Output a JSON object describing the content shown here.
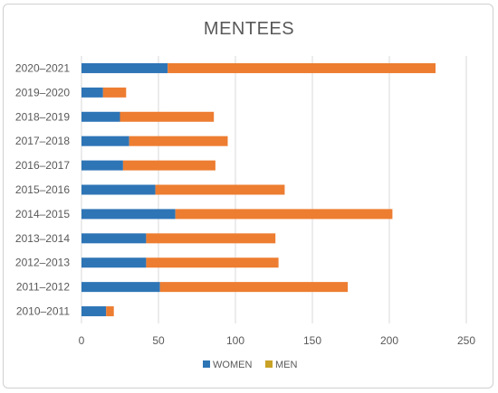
{
  "chart_data": {
    "type": "bar",
    "orientation": "horizontal",
    "stacked": true,
    "title": "MENTEES",
    "categories": [
      "2020–2021",
      "2019–2020",
      "2018–2019",
      "2017–2018",
      "2016–2017",
      "2015–2016",
      "2014–2015",
      "2013–2014",
      "2012–2013",
      "2011–2012",
      "2010–2011"
    ],
    "series": [
      {
        "name": "WOMEN",
        "color": "#2e75b6",
        "values": [
          56,
          14,
          25,
          31,
          27,
          48,
          61,
          42,
          42,
          51,
          16
        ]
      },
      {
        "name": "MEN",
        "color_swatch": "#c9a227",
        "color_bars": "#ed7d31",
        "values": [
          174,
          15,
          61,
          64,
          60,
          84,
          141,
          84,
          86,
          122,
          5
        ]
      }
    ],
    "xlim": [
      0,
      250
    ],
    "xticks": [
      0,
      50,
      100,
      150,
      200,
      250
    ],
    "grid": true,
    "legend": "bottom"
  }
}
